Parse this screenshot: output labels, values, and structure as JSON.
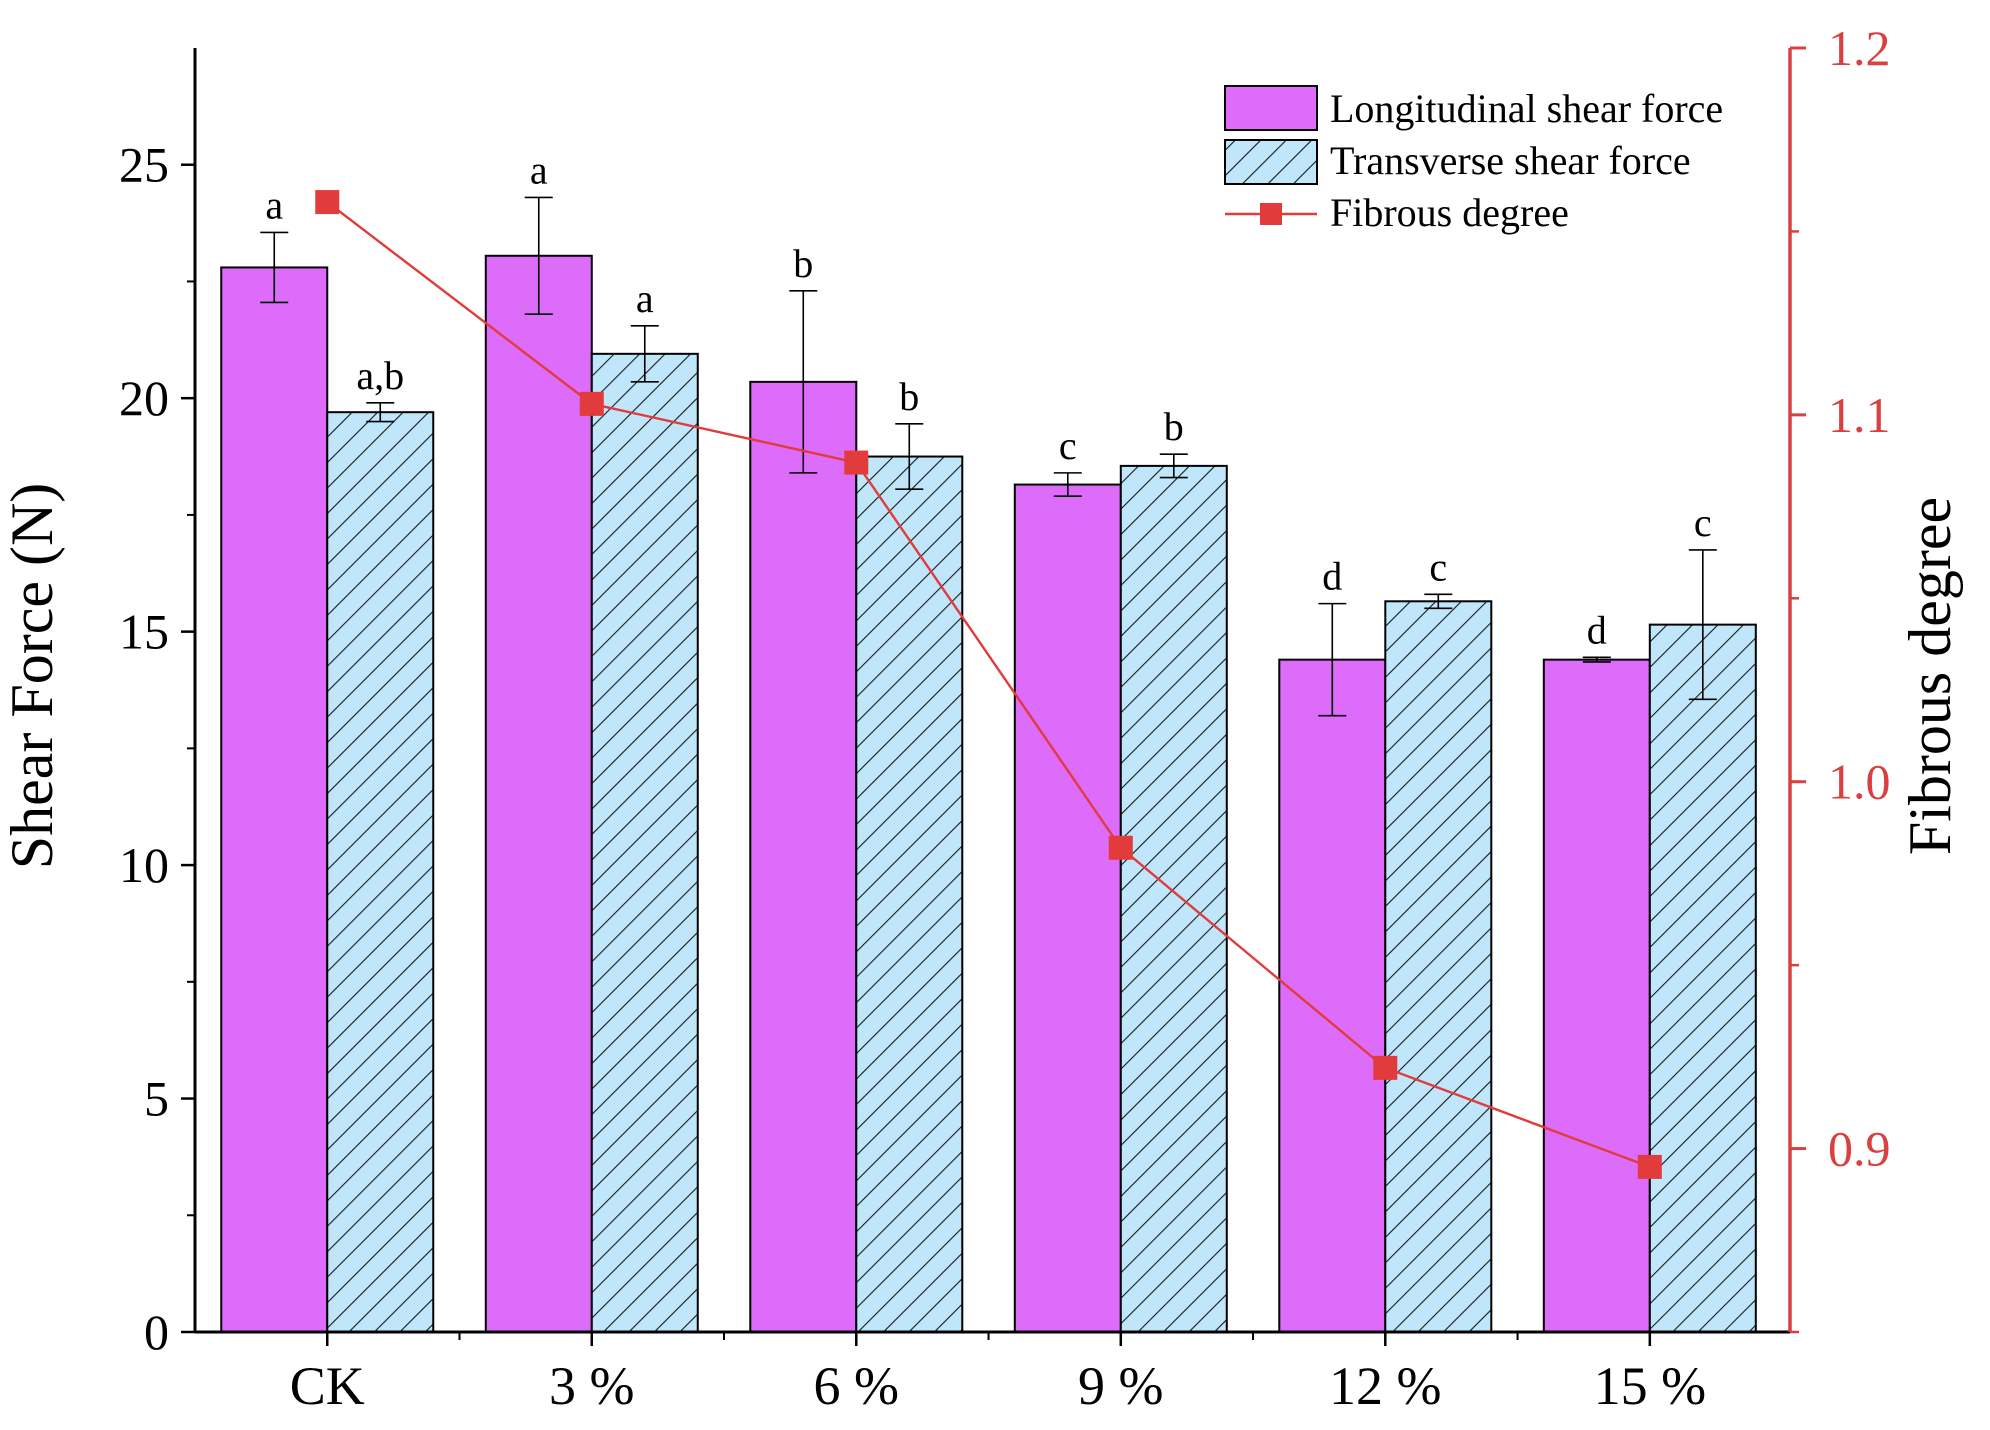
{
  "chart_data": {
    "type": "bar",
    "categories": [
      "CK",
      "3 %",
      "6 %",
      "9 %",
      "12 %",
      "15 %"
    ],
    "series": [
      {
        "name": "Longitudinal shear force",
        "values": [
          22.8,
          23.05,
          20.35,
          18.15,
          14.4,
          14.4
        ],
        "errors": [
          0.75,
          1.25,
          1.95,
          0.25,
          1.2,
          0.05
        ],
        "letters": [
          "a",
          "a",
          "b",
          "c",
          "d",
          "d"
        ],
        "color": "#dd6cfb"
      },
      {
        "name": "Transverse shear force",
        "values": [
          19.7,
          20.95,
          18.75,
          18.55,
          15.65,
          15.15
        ],
        "errors": [
          0.2,
          0.6,
          0.7,
          0.25,
          0.15,
          1.6
        ],
        "letters": [
          "a,b",
          "a",
          "b",
          "b",
          "c",
          "c"
        ],
        "color": "#bfe6fb",
        "pattern": "hatched"
      }
    ],
    "line_series": {
      "name": "Fibrous degree",
      "values": [
        1.158,
        1.103,
        1.087,
        0.982,
        0.922,
        0.895
      ],
      "color": "#e23b3b"
    },
    "xlabel": "",
    "ylabel": "Shear Force (N)",
    "ylim": [
      0,
      27.5
    ],
    "yticks": [
      "0",
      "5",
      "10",
      "15",
      "20",
      "25"
    ],
    "y2label": "Fibrous degree",
    "y2lim": [
      0.85,
      1.2
    ],
    "y2ticks": [
      "0.9",
      "1.0",
      "1.1",
      "1.2"
    ],
    "legend_position": "top-right"
  }
}
